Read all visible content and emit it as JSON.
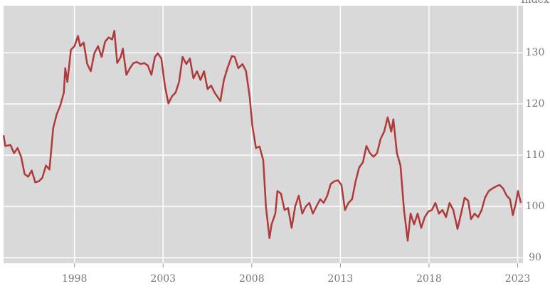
{
  "chart_data": {
    "type": "line",
    "y_label": "Index",
    "x": [
      1994.0,
      1994.1,
      1994.39,
      1994.59,
      1994.79,
      1994.99,
      1995.19,
      1995.39,
      1995.59,
      1995.79,
      1995.99,
      1996.19,
      1996.39,
      1996.59,
      1996.8,
      1997.0,
      1997.2,
      1997.4,
      1997.48,
      1997.6,
      1997.8,
      1998.0,
      1998.2,
      1998.32,
      1998.52,
      1998.72,
      1998.92,
      1999.12,
      1999.33,
      1999.53,
      1999.73,
      1999.93,
      2000.13,
      2000.25,
      2000.41,
      2000.61,
      2000.73,
      2000.93,
      2001.13,
      2001.33,
      2001.53,
      2001.73,
      2001.94,
      2002.14,
      2002.34,
      2002.54,
      2002.7,
      2002.9,
      2003.1,
      2003.3,
      2003.5,
      2003.7,
      2003.9,
      2004.1,
      2004.31,
      2004.51,
      2004.71,
      2004.91,
      2005.11,
      2005.31,
      2005.51,
      2005.71,
      2005.91,
      2006.23,
      2006.43,
      2006.63,
      2006.88,
      2007.04,
      2007.24,
      2007.48,
      2007.68,
      2007.88,
      2008.04,
      2008.24,
      2008.44,
      2008.65,
      2008.8,
      2009.0,
      2009.12,
      2009.33,
      2009.45,
      2009.65,
      2009.85,
      2010.05,
      2010.25,
      2010.45,
      2010.65,
      2010.85,
      2011.05,
      2011.25,
      2011.45,
      2011.65,
      2011.86,
      2012.06,
      2012.26,
      2012.46,
      2012.66,
      2012.86,
      2013.06,
      2013.26,
      2013.46,
      2013.66,
      2013.86,
      2014.06,
      2014.27,
      2014.47,
      2014.67,
      2014.87,
      2015.07,
      2015.27,
      2015.47,
      2015.67,
      2015.87,
      2015.99,
      2016.19,
      2016.39,
      2016.59,
      2016.8,
      2016.96,
      2017.16,
      2017.36,
      2017.56,
      2017.76,
      2017.96,
      2018.16,
      2018.36,
      2018.56,
      2018.76,
      2018.96,
      2019.16,
      2019.37,
      2019.61,
      2019.81,
      2020.01,
      2020.21,
      2020.37,
      2020.57,
      2020.77,
      2020.97,
      2021.16,
      2021.37,
      2021.57,
      2021.78,
      2021.98,
      2022.18,
      2022.38,
      2022.57,
      2022.73,
      2022.9,
      2023.02,
      2023.18
    ],
    "series": [
      {
        "name": "Index",
        "color": "#b03a3a",
        "values": [
          113.9,
          111.8,
          112,
          110.4,
          111.4,
          109.7,
          106.3,
          105.8,
          107,
          104.7,
          104.9,
          105.6,
          108,
          107.2,
          115.3,
          118,
          119.7,
          122.2,
          127,
          124.3,
          130.6,
          131.3,
          133.3,
          131.3,
          132,
          127.8,
          126.4,
          129.9,
          131.3,
          129.2,
          132.2,
          133,
          132.6,
          134.3,
          128,
          129.2,
          130.8,
          125.7,
          127,
          128,
          128.2,
          127.8,
          128,
          127.5,
          125.7,
          129.2,
          129.9,
          128.9,
          123.6,
          120.1,
          121.5,
          122.2,
          124.3,
          129.2,
          127.8,
          128.9,
          125,
          126.4,
          124.7,
          126.4,
          122.9,
          123.6,
          122.2,
          120.6,
          124.7,
          127,
          129.4,
          129.2,
          127,
          127.8,
          126.4,
          121.5,
          115.6,
          111.4,
          111.7,
          109,
          100,
          93.8,
          96.5,
          98.6,
          103,
          102.5,
          99.3,
          99.7,
          95.8,
          100,
          102.1,
          98.6,
          100,
          100.7,
          98.6,
          100,
          101.4,
          100.7,
          102.1,
          104.4,
          104.9,
          105.1,
          104.2,
          99.3,
          100.7,
          101.4,
          104.9,
          107.6,
          108.6,
          111.8,
          110.4,
          109.7,
          110.4,
          113.2,
          114.6,
          117.4,
          114.6,
          117,
          110.4,
          108,
          99.3,
          93.3,
          98.6,
          96.5,
          98.6,
          95.8,
          97.9,
          99,
          99.3,
          100.7,
          98.6,
          99.3,
          97.9,
          100.7,
          99.3,
          95.6,
          98.6,
          101.7,
          101.1,
          97.5,
          98.6,
          97.9,
          99.3,
          101.7,
          103,
          103.5,
          103.9,
          104.2,
          103.5,
          102.1,
          101.4,
          98.3,
          100.7,
          103,
          100.7
        ]
      }
    ],
    "xlim": [
      1994,
      2023.3
    ],
    "xticks": [
      1998,
      2003,
      2008,
      2013,
      2018,
      2023
    ],
    "ylim": [
      88.9,
      139.2
    ],
    "yticks": [
      90,
      100,
      110,
      120,
      130
    ],
    "grid": true
  }
}
